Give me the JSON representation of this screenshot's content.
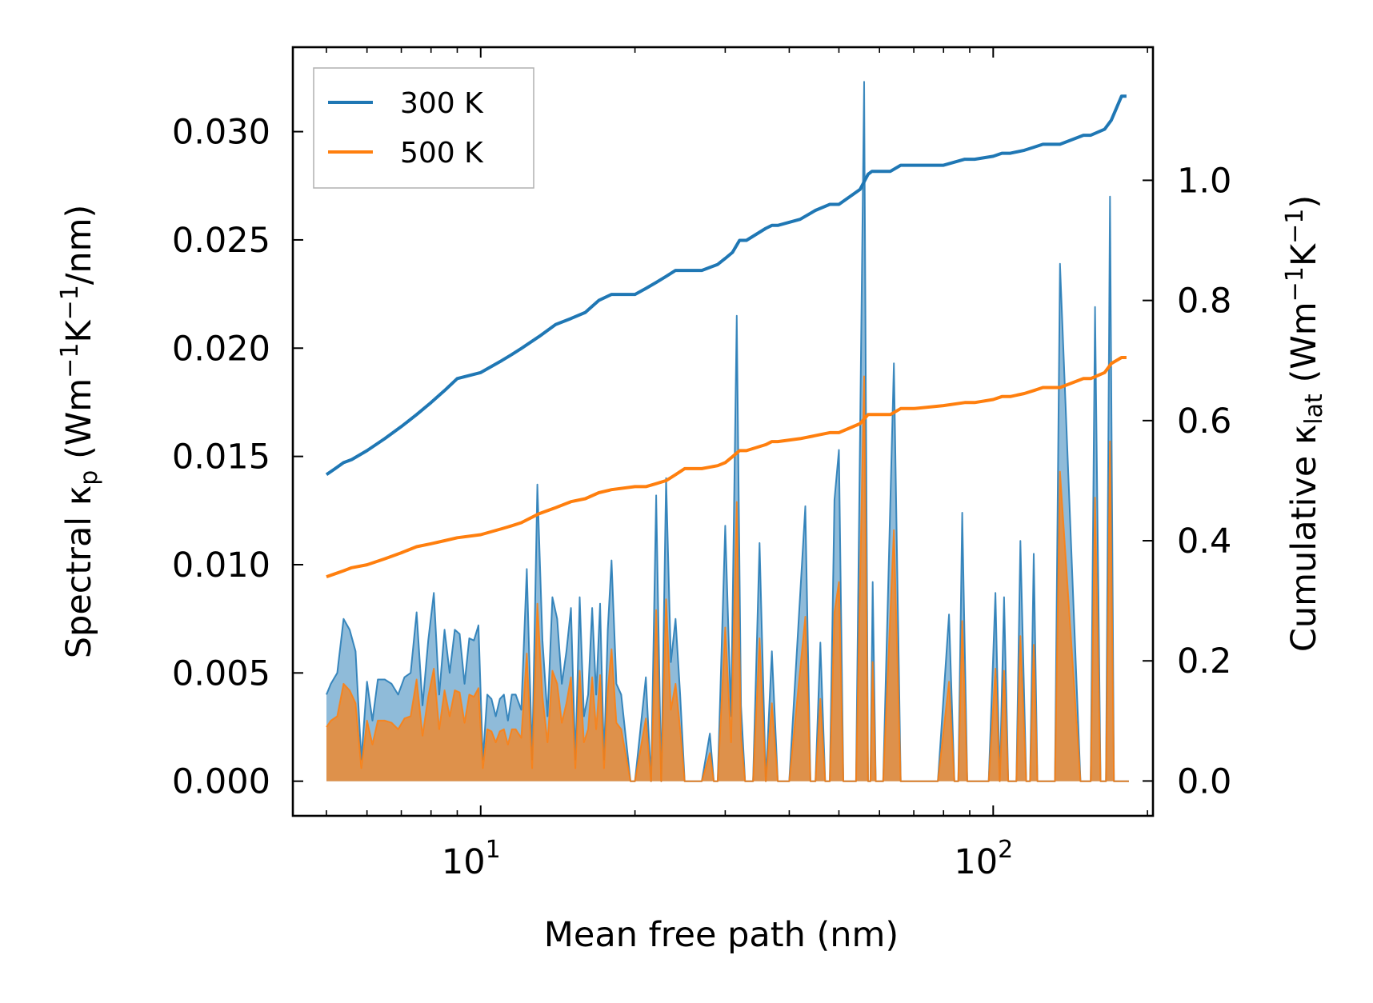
{
  "chart_data": {
    "type": "line",
    "xscale": "log",
    "xlim": [
      4.3,
      205
    ],
    "xlabel": "Mean free path (nm)",
    "xticks": [
      {
        "value": 10,
        "base": "10",
        "exp": "1"
      },
      {
        "value": 100,
        "base": "10",
        "exp": "2"
      }
    ],
    "left_axis": {
      "ylim": [
        -0.0016,
        0.0339
      ],
      "label_prefix": "Spectral κ",
      "label_sub": "p",
      "label_unit_open": " (Wm",
      "label_exp1": "−1",
      "label_k": "K",
      "label_exp2": "−1",
      "label_unit_close": "/nm)",
      "ticks": [
        {
          "value": 0.0,
          "label": "0.000"
        },
        {
          "value": 0.005,
          "label": "0.005"
        },
        {
          "value": 0.01,
          "label": "0.010"
        },
        {
          "value": 0.015,
          "label": "0.015"
        },
        {
          "value": 0.02,
          "label": "0.020"
        },
        {
          "value": 0.025,
          "label": "0.025"
        },
        {
          "value": 0.03,
          "label": "0.030"
        }
      ]
    },
    "right_axis": {
      "ylim": [
        -0.058,
        1.2216
      ],
      "label_prefix": "Cumulative κ",
      "label_sub": "lat",
      "label_unit_open": " (Wm",
      "label_exp1": "−1",
      "label_k": "K",
      "label_exp2": "−1",
      "label_unit_close": ")",
      "ticks": [
        {
          "value": 0.0,
          "label": "0.0"
        },
        {
          "value": 0.2,
          "label": "0.2"
        },
        {
          "value": 0.4,
          "label": "0.4"
        },
        {
          "value": 0.6,
          "label": "0.6"
        },
        {
          "value": 0.8,
          "label": "0.8"
        },
        {
          "value": 1.0,
          "label": "1.0"
        }
      ]
    },
    "legend": {
      "position": "top-left",
      "entries": [
        {
          "label": "300 K",
          "color": "#1f77b4"
        },
        {
          "label": "500 K",
          "color": "#ff7f0e"
        }
      ]
    },
    "series": [
      {
        "name": "300 K",
        "color": "#1f77b4",
        "axis": "right",
        "kind": "cumulative",
        "x": [
          5,
          5.2,
          5.4,
          5.6,
          6.0,
          6.5,
          7.0,
          7.5,
          8.0,
          8.5,
          9.0,
          10.0,
          11.0,
          11.5,
          12.0,
          13.0,
          14.0,
          15.0,
          16.0,
          17.0,
          18.0,
          20.0,
          21.0,
          22.0,
          23.0,
          24.0,
          25.0,
          27.0,
          29.0,
          30.0,
          31.0,
          32.0,
          33.0,
          36.0,
          37.0,
          38.0,
          42.0,
          45.0,
          48.0,
          50.0,
          55.0,
          57.0,
          58.0,
          63.0,
          66.0,
          70.0,
          80.0,
          88.0,
          92.0,
          100.0,
          104.0,
          108.0,
          115.0,
          120.0,
          125.0,
          128.0,
          135.0,
          150.0,
          155.0,
          165.0,
          170.0,
          178.0,
          182.0
        ],
        "y": [
          0.51,
          0.52,
          0.53,
          0.535,
          0.55,
          0.57,
          0.59,
          0.61,
          0.63,
          0.65,
          0.67,
          0.68,
          0.7,
          0.71,
          0.72,
          0.74,
          0.76,
          0.77,
          0.78,
          0.8,
          0.81,
          0.81,
          0.82,
          0.83,
          0.84,
          0.85,
          0.85,
          0.85,
          0.86,
          0.87,
          0.88,
          0.9,
          0.9,
          0.92,
          0.925,
          0.925,
          0.935,
          0.95,
          0.96,
          0.96,
          0.985,
          1.01,
          1.015,
          1.015,
          1.025,
          1.025,
          1.025,
          1.035,
          1.035,
          1.04,
          1.045,
          1.045,
          1.05,
          1.055,
          1.06,
          1.06,
          1.06,
          1.075,
          1.075,
          1.085,
          1.1,
          1.14,
          1.14
        ]
      },
      {
        "name": "500 K",
        "color": "#ff7f0e",
        "axis": "right",
        "kind": "cumulative",
        "x": [
          5,
          5.2,
          5.4,
          5.6,
          6.0,
          6.5,
          7.0,
          7.5,
          8.0,
          8.5,
          9.0,
          10.0,
          11.0,
          11.5,
          12.0,
          13.0,
          14.0,
          15.0,
          16.0,
          17.0,
          18.0,
          20.0,
          21.0,
          22.0,
          23.0,
          24.0,
          25.0,
          27.0,
          29.0,
          30.0,
          31.0,
          32.0,
          33.0,
          36.0,
          37.0,
          38.0,
          42.0,
          45.0,
          48.0,
          50.0,
          55.0,
          57.0,
          58.0,
          63.0,
          66.0,
          70.0,
          80.0,
          88.0,
          92.0,
          100.0,
          104.0,
          108.0,
          115.0,
          120.0,
          125.0,
          128.0,
          135.0,
          150.0,
          155.0,
          165.0,
          170.0,
          178.0,
          182.0
        ],
        "y": [
          0.34,
          0.345,
          0.35,
          0.355,
          0.36,
          0.37,
          0.38,
          0.39,
          0.395,
          0.4,
          0.405,
          0.41,
          0.42,
          0.425,
          0.43,
          0.445,
          0.455,
          0.465,
          0.47,
          0.48,
          0.485,
          0.49,
          0.49,
          0.495,
          0.5,
          0.51,
          0.52,
          0.52,
          0.525,
          0.53,
          0.54,
          0.55,
          0.55,
          0.56,
          0.565,
          0.565,
          0.57,
          0.575,
          0.58,
          0.58,
          0.595,
          0.61,
          0.61,
          0.61,
          0.62,
          0.62,
          0.625,
          0.63,
          0.63,
          0.635,
          0.64,
          0.64,
          0.645,
          0.65,
          0.655,
          0.655,
          0.655,
          0.67,
          0.67,
          0.68,
          0.695,
          0.705,
          0.705
        ]
      },
      {
        "name": "300 K spectral",
        "color": "#1f77b4",
        "axis": "left",
        "kind": "spectral",
        "x": [
          5.0,
          5.1,
          5.25,
          5.4,
          5.55,
          5.7,
          5.85,
          6.0,
          6.15,
          6.3,
          6.5,
          6.7,
          6.9,
          7.1,
          7.3,
          7.5,
          7.7,
          7.9,
          8.1,
          8.3,
          8.5,
          8.7,
          8.9,
          9.1,
          9.3,
          9.5,
          9.7,
          9.9,
          10.1,
          10.3,
          10.5,
          10.7,
          10.9,
          11.1,
          11.3,
          11.5,
          11.7,
          12.0,
          12.3,
          12.6,
          12.9,
          13.2,
          13.5,
          13.8,
          14.1,
          14.4,
          14.7,
          15.0,
          15.3,
          15.6,
          15.9,
          16.2,
          16.5,
          16.8,
          17.1,
          17.4,
          17.7,
          18.0,
          18.4,
          18.8,
          19.2,
          19.6,
          20.0,
          21.0,
          21.5,
          22.0,
          22.5,
          23.0,
          23.5,
          24.0,
          24.5,
          25.0,
          26.0,
          27.0,
          28.0,
          28.5,
          29.0,
          30.0,
          30.8,
          31.6,
          32.2,
          32.8,
          33.4,
          34.0,
          35.0,
          36.0,
          37.0,
          38.0,
          40.0,
          43.0,
          44.0,
          45.0,
          46.0,
          47.0,
          48.0,
          49.0,
          50.0,
          51.0,
          52.0,
          54.0,
          56.0,
          57.0,
          57.6,
          58.2,
          59.0,
          60.0,
          61.0,
          64.0,
          66.0,
          67.0,
          68.0,
          70.0,
          78.0,
          82.0,
          84.0,
          85.5,
          87.0,
          89.0,
          91.0,
          93.0,
          98.0,
          101.0,
          103.0,
          105.0,
          107.0,
          109.0,
          111.0,
          113.0,
          116.0,
          118.0,
          120.0,
          122.0,
          125.0,
          128.0,
          130.0,
          132.0,
          135.0,
          148.0,
          152.0,
          155.0,
          158.0,
          162.0,
          166.0,
          169.0,
          172.0,
          175.0,
          177.5,
          180.0,
          182.0,
          184.0
        ],
        "y": [
          0.004,
          0.0045,
          0.005,
          0.0075,
          0.007,
          0.006,
          0.001,
          0.0046,
          0.0028,
          0.0047,
          0.0047,
          0.0045,
          0.004,
          0.0048,
          0.005,
          0.0078,
          0.0035,
          0.0065,
          0.0087,
          0.004,
          0.007,
          0.005,
          0.007,
          0.0068,
          0.0045,
          0.0066,
          0.0065,
          0.0072,
          0.001,
          0.004,
          0.0038,
          0.003,
          0.0038,
          0.004,
          0.0028,
          0.004,
          0.004,
          0.0033,
          0.0098,
          0.001,
          0.0137,
          0.0065,
          0.003,
          0.0085,
          0.0075,
          0.0045,
          0.006,
          0.008,
          0.001,
          0.0085,
          0.003,
          0.004,
          0.008,
          0.004,
          0.0082,
          0.001,
          0.007,
          0.0102,
          0.0045,
          0.004,
          0.002,
          0.0,
          0.0,
          0.0048,
          0.0,
          0.0132,
          0.0,
          0.014,
          0.0055,
          0.0075,
          0.004,
          0.0,
          0.0,
          0.0,
          0.0022,
          0.0,
          0.0,
          0.0118,
          0.003,
          0.0215,
          0.0035,
          0.0,
          0.0,
          0.0,
          0.011,
          0.0,
          0.006,
          0.0,
          0.0,
          0.0127,
          0.0,
          0.0,
          0.0064,
          0.0,
          0.0,
          0.013,
          0.0153,
          0.0,
          0.0,
          0.0,
          0.0323,
          0.0,
          0.0,
          0.0092,
          0.0,
          0.0,
          0.0,
          0.0193,
          0.0,
          0.0,
          0.0,
          0.0,
          0.0,
          0.0077,
          0.0,
          0.0,
          0.0124,
          0.0,
          0.0,
          0.0,
          0.0,
          0.0087,
          0.0,
          0.0085,
          0.0,
          0.0,
          0.0,
          0.0111,
          0.0,
          0.0,
          0.0105,
          0.0,
          0.0,
          0.0,
          0.0,
          0.0,
          0.0239,
          0.0,
          0.0,
          0.0,
          0.0219,
          0.0,
          0.0,
          0.027,
          0.0,
          0.0,
          0.0,
          0.0,
          0.0,
          0.0
        ]
      },
      {
        "name": "500 K spectral",
        "color": "#ff7f0e",
        "axis": "left",
        "kind": "spectral",
        "x": [
          5.0,
          5.1,
          5.25,
          5.4,
          5.55,
          5.7,
          5.85,
          6.0,
          6.15,
          6.3,
          6.5,
          6.7,
          6.9,
          7.1,
          7.3,
          7.5,
          7.7,
          7.9,
          8.1,
          8.3,
          8.5,
          8.7,
          8.9,
          9.1,
          9.3,
          9.5,
          9.7,
          9.9,
          10.1,
          10.3,
          10.5,
          10.7,
          10.9,
          11.1,
          11.3,
          11.5,
          11.7,
          12.0,
          12.3,
          12.6,
          12.9,
          13.2,
          13.5,
          13.8,
          14.1,
          14.4,
          14.7,
          15.0,
          15.3,
          15.6,
          15.9,
          16.2,
          16.5,
          16.8,
          17.1,
          17.4,
          17.7,
          18.0,
          18.4,
          18.8,
          19.2,
          19.6,
          20.0,
          21.0,
          21.5,
          22.0,
          22.5,
          23.0,
          23.5,
          24.0,
          24.5,
          25.0,
          26.0,
          27.0,
          28.0,
          28.5,
          29.0,
          30.0,
          30.8,
          31.6,
          32.2,
          32.8,
          33.4,
          34.0,
          35.0,
          36.0,
          37.0,
          38.0,
          40.0,
          43.0,
          44.0,
          45.0,
          46.0,
          47.0,
          48.0,
          49.0,
          50.0,
          51.0,
          52.0,
          54.0,
          56.0,
          57.0,
          57.6,
          58.2,
          59.0,
          60.0,
          61.0,
          64.0,
          66.0,
          67.0,
          68.0,
          70.0,
          78.0,
          82.0,
          84.0,
          85.5,
          87.0,
          89.0,
          91.0,
          93.0,
          98.0,
          101.0,
          103.0,
          105.0,
          107.0,
          109.0,
          111.0,
          113.0,
          116.0,
          118.0,
          120.0,
          122.0,
          125.0,
          128.0,
          130.0,
          132.0,
          135.0,
          148.0,
          152.0,
          155.0,
          158.0,
          162.0,
          166.0,
          169.0,
          172.0,
          175.0,
          177.5,
          180.0,
          182.0,
          184.0
        ],
        "y": [
          0.0025,
          0.0028,
          0.003,
          0.0045,
          0.0042,
          0.0036,
          0.0006,
          0.0028,
          0.0017,
          0.0028,
          0.0028,
          0.0027,
          0.0024,
          0.0029,
          0.003,
          0.0047,
          0.0021,
          0.0039,
          0.0052,
          0.0024,
          0.0042,
          0.003,
          0.0042,
          0.0041,
          0.0027,
          0.004,
          0.0039,
          0.0043,
          0.0006,
          0.0024,
          0.0023,
          0.0018,
          0.0023,
          0.0024,
          0.0017,
          0.0024,
          0.0024,
          0.002,
          0.0059,
          0.0006,
          0.0082,
          0.0039,
          0.0018,
          0.0051,
          0.0045,
          0.0027,
          0.0036,
          0.0048,
          0.0006,
          0.0051,
          0.0018,
          0.0024,
          0.0048,
          0.0024,
          0.0049,
          0.0006,
          0.0042,
          0.0061,
          0.0027,
          0.0024,
          0.0012,
          0.0,
          0.0,
          0.0029,
          0.0,
          0.0079,
          0.0,
          0.0084,
          0.0033,
          0.0045,
          0.0024,
          0.0,
          0.0,
          0.0,
          0.0013,
          0.0,
          0.0,
          0.0071,
          0.0018,
          0.0129,
          0.0021,
          0.0,
          0.0,
          0.0,
          0.0066,
          0.0,
          0.0036,
          0.0,
          0.0,
          0.0076,
          0.0,
          0.0,
          0.0038,
          0.0,
          0.0,
          0.0078,
          0.0092,
          0.0,
          0.0,
          0.0,
          0.0187,
          0.0,
          0.0,
          0.0055,
          0.0,
          0.0,
          0.0,
          0.0116,
          0.0,
          0.0,
          0.0,
          0.0,
          0.0,
          0.0046,
          0.0,
          0.0,
          0.0074,
          0.0,
          0.0,
          0.0,
          0.0,
          0.0052,
          0.0,
          0.0051,
          0.0,
          0.0,
          0.0,
          0.0067,
          0.0,
          0.0,
          0.0063,
          0.0,
          0.0,
          0.0,
          0.0,
          0.0,
          0.0143,
          0.0,
          0.0,
          0.0,
          0.0131,
          0.0,
          0.0,
          0.0157,
          0.0,
          0.0,
          0.0,
          0.0,
          0.0,
          0.0
        ]
      }
    ]
  }
}
